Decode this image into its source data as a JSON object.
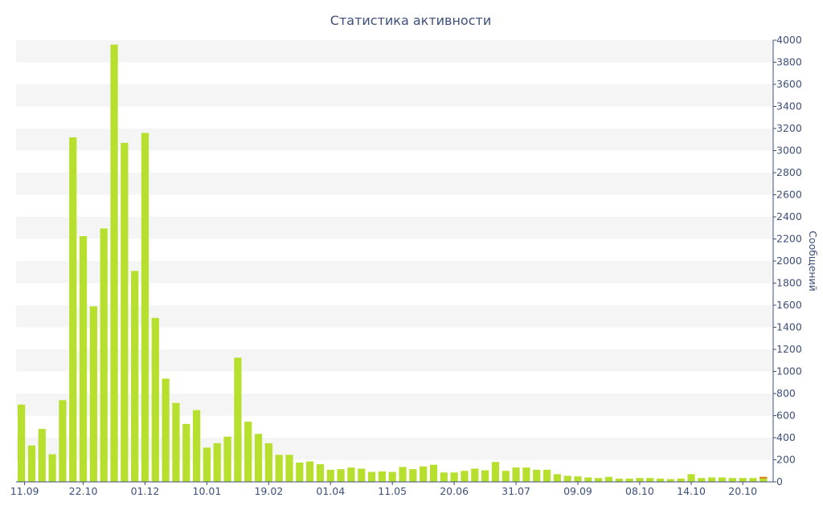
{
  "chart_data": {
    "type": "bar",
    "title": "Статистика активности",
    "ylabel": "Сообщений",
    "xlabel": "",
    "ylim": [
      0,
      4000
    ],
    "y_ticks": [
      0,
      200,
      400,
      600,
      800,
      1000,
      1200,
      1400,
      1600,
      1800,
      2000,
      2200,
      2400,
      2600,
      2800,
      3000,
      3200,
      3400,
      3600,
      3800,
      4000
    ],
    "x_tick_labels": [
      "11.09",
      "22.10",
      "01.12",
      "10.01",
      "19.02",
      "01.04",
      "11.05",
      "20.06",
      "31.07",
      "09.09",
      "08.10",
      "14.10",
      "20.10"
    ],
    "x_tick_bar_index": [
      0,
      6,
      12,
      18,
      24,
      30,
      36,
      42,
      48,
      54,
      60,
      65,
      70
    ],
    "grid": "horizontal alternating bands",
    "axis_position": "right",
    "colors": {
      "bar": "#b7e02e",
      "highlight": "#e8761a",
      "text": "#3d4f7a",
      "band": "#f5f5f5",
      "axis": "#3d4f7a"
    },
    "series": [
      {
        "values": [
          700,
          330,
          480,
          250,
          740,
          3120,
          2225,
          1590,
          2295,
          3960,
          3070,
          1910,
          3160,
          1485,
          935,
          715,
          525,
          650,
          310,
          350,
          410,
          1125,
          545,
          435,
          350,
          245,
          245,
          175,
          185,
          160,
          110,
          115,
          130,
          120,
          90,
          95,
          90,
          135,
          115,
          140,
          155,
          85,
          85,
          100,
          120,
          105,
          180,
          100,
          130,
          130,
          110,
          110,
          70,
          55,
          50,
          40,
          35,
          45,
          30,
          30,
          35,
          35,
          30,
          25,
          30,
          70,
          35,
          40,
          40,
          35,
          35,
          35,
          45
        ]
      }
    ]
  }
}
